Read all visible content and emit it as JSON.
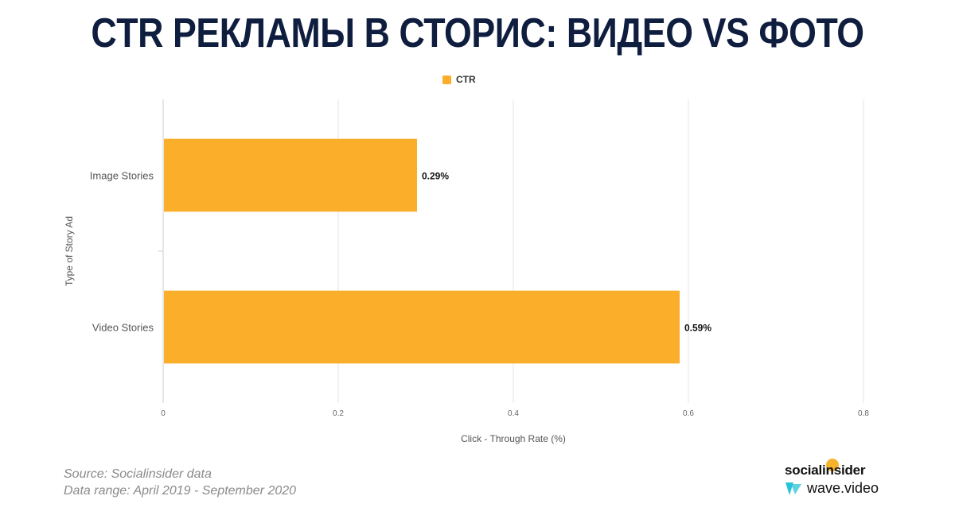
{
  "title": "CTR РЕКЛАМЫ В СТОРИС: ВИДЕО VS ФОТО",
  "chart_data": {
    "type": "bar",
    "orientation": "horizontal",
    "categories": [
      "Image Stories",
      "Video Stories"
    ],
    "series": [
      {
        "name": "CTR",
        "values": [
          0.29,
          0.59
        ],
        "data_labels": [
          "0.29%",
          "0.59%"
        ],
        "color": "#fbae2a"
      }
    ],
    "xlabel": "Click - Through Rate (%)",
    "ylabel": "Type of Story Ad",
    "xlim": [
      0,
      0.8
    ],
    "x_ticks": [
      "0",
      "0.2",
      "0.4",
      "0.6",
      "0.8"
    ],
    "grid": true,
    "legend_position": "top-center"
  },
  "footer": {
    "source": "Source: Socialinsider data",
    "range": "Data range: April 2019 - September 2020"
  },
  "logos": {
    "socialinsider": "socialinsider",
    "wavevideo": "wave.video",
    "socialinsider_color": "#f7b22b",
    "wavevideo_color": "#29c3d8"
  }
}
